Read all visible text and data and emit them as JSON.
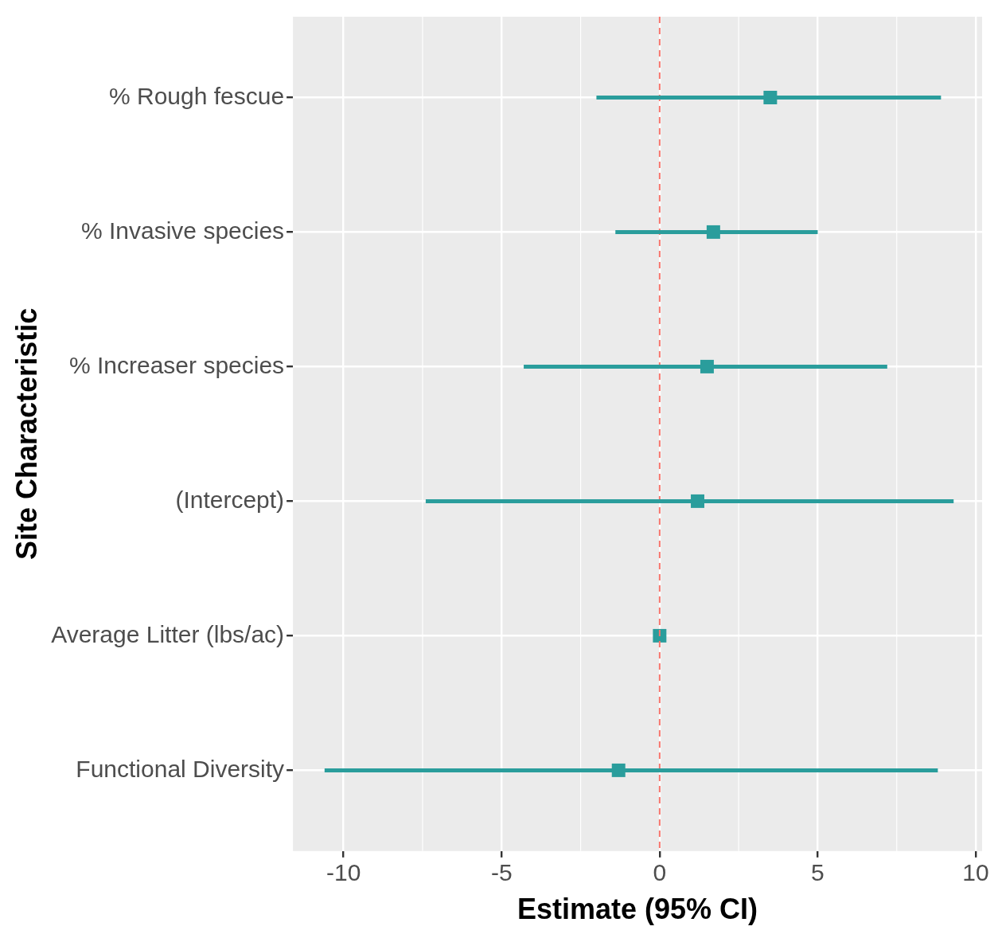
{
  "chart_data": {
    "type": "scatter",
    "orientation": "horizontal",
    "xlabel": "Estimate (95% CI)",
    "ylabel": "Site Characteristic",
    "categories": [
      "% Rough fescue",
      "% Invasive species",
      "% Increaser species",
      "(Intercept)",
      "Average Litter (lbs/ac)",
      "Functional Diversity"
    ],
    "series": [
      {
        "color": "#2a9d9c",
        "values": [
          3.5,
          1.7,
          1.5,
          1.2,
          0.0,
          -1.3
        ],
        "errors": [
          [
            -2.0,
            8.9
          ],
          [
            -1.4,
            5.0
          ],
          [
            -4.3,
            7.2
          ],
          [
            -7.4,
            9.3
          ],
          null,
          [
            -10.6,
            8.8
          ]
        ]
      }
    ],
    "xlim": [
      -11.6,
      10.2
    ],
    "xticks": [
      -10,
      -5,
      0,
      5,
      10
    ],
    "grid": true,
    "legend": false,
    "marker": "square",
    "ref_lines": [
      {
        "axis": "x",
        "value": 0,
        "color": "#f8766d",
        "line_style": "dashed"
      }
    ]
  }
}
